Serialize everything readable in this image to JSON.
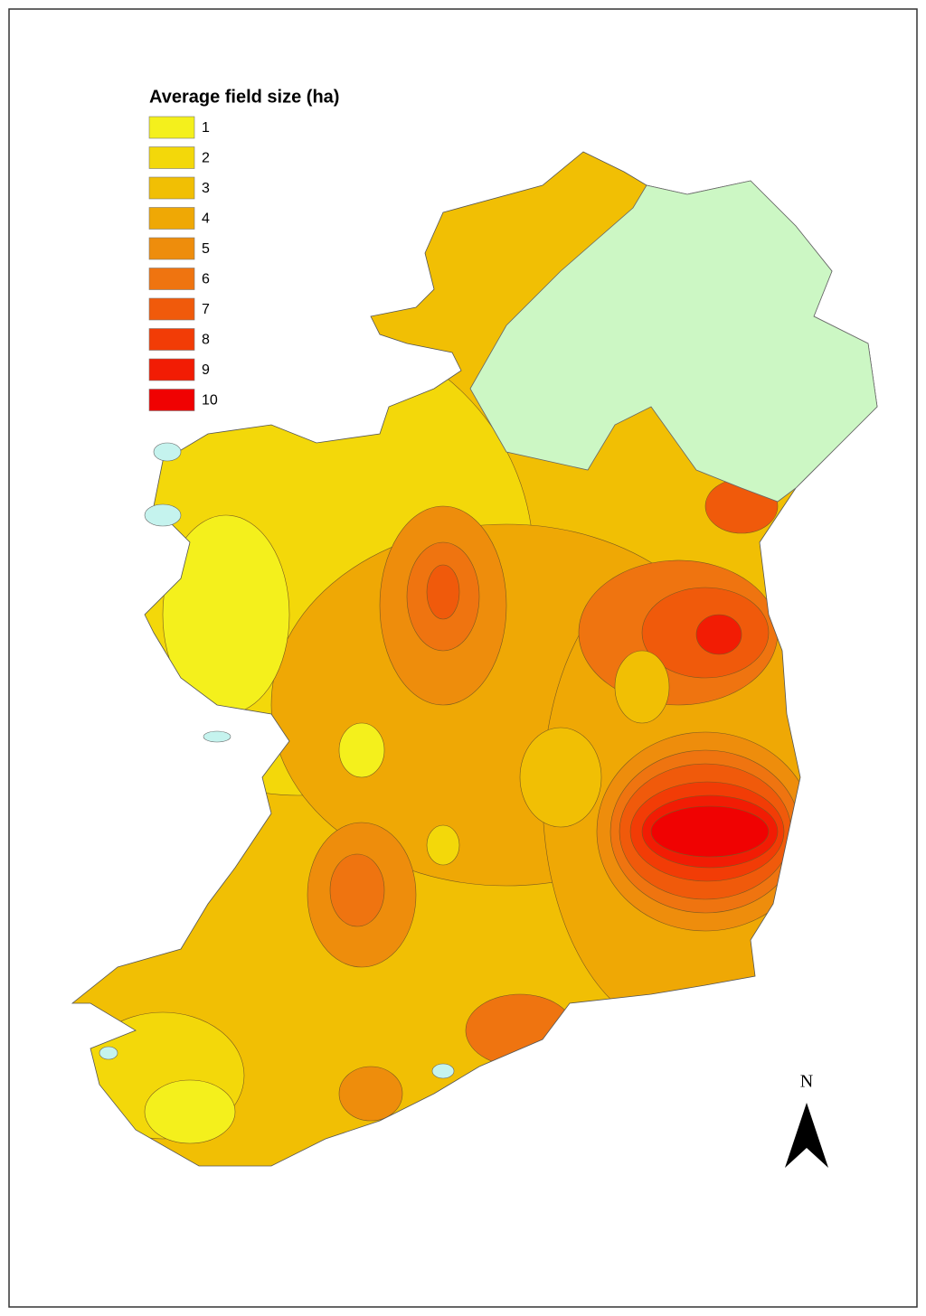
{
  "legend": {
    "title": "Average field size (ha)",
    "items": [
      {
        "label": "1",
        "color": "#f4f01c"
      },
      {
        "label": "2",
        "color": "#f3d80a"
      },
      {
        "label": "3",
        "color": "#f1bf04"
      },
      {
        "label": "4",
        "color": "#efa805"
      },
      {
        "label": "5",
        "color": "#ee8d0c"
      },
      {
        "label": "6",
        "color": "#ef7410"
      },
      {
        "label": "7",
        "color": "#f05a0b"
      },
      {
        "label": "8",
        "color": "#f23c06"
      },
      {
        "label": "9",
        "color": "#f21c04"
      },
      {
        "label": "10",
        "color": "#f00202"
      }
    ]
  },
  "north_arrow": {
    "label": "N"
  }
}
